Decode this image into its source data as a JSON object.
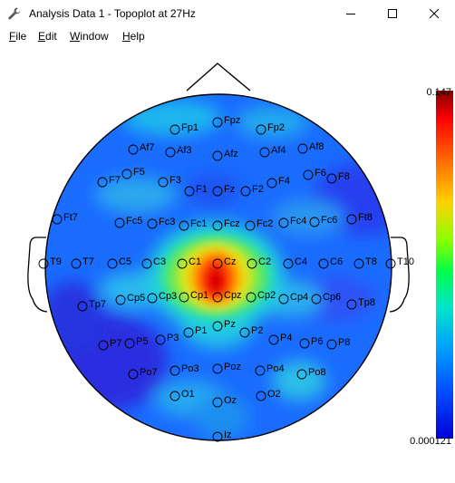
{
  "window": {
    "title": "Analysis Data 1 - Topoplot at 27Hz",
    "app_icon": "wrench-icon",
    "controls": [
      "minimize-icon",
      "maximize-icon",
      "close-icon"
    ]
  },
  "menu": [
    {
      "mnemonic": "F",
      "rest": "ile"
    },
    {
      "mnemonic": "E",
      "rest": "dit"
    },
    {
      "mnemonic": "W",
      "rest": "indow"
    },
    {
      "mnemonic": "H",
      "rest": "elp"
    }
  ],
  "colorbar": {
    "max": "0.147",
    "min": "0.000121"
  },
  "electrodes": [
    "Fp1",
    "Fpz",
    "Fp2",
    "Af7",
    "Af3",
    "Afz",
    "Af4",
    "Af8",
    "F7",
    "F5",
    "F3",
    "F1",
    "Fz",
    "F2",
    "F4",
    "F6",
    "F8",
    "Ft7",
    "Fc5",
    "Fc3",
    "Fc1",
    "Fcz",
    "Fc2",
    "Fc4",
    "Fc6",
    "Ft8",
    "T9",
    "T7",
    "C5",
    "C3",
    "C1",
    "Cz",
    "C2",
    "C4",
    "C6",
    "T8",
    "T10",
    "Tp7",
    "Cp5",
    "Cp3",
    "Cp1",
    "Cpz",
    "Cp2",
    "Cp4",
    "Cp6",
    "Tp8",
    "P7",
    "P5",
    "P3",
    "P1",
    "Pz",
    "P2",
    "P4",
    "P6",
    "P8",
    "Po7",
    "Po3",
    "Poz",
    "Po4",
    "Po8",
    "O1",
    "Oz",
    "O2",
    "Iz"
  ]
}
